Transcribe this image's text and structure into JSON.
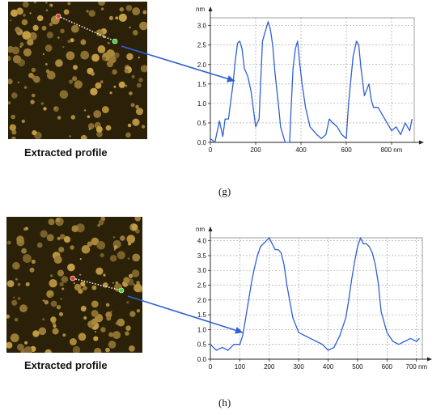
{
  "figures": [
    {
      "id": "g",
      "caption": "Extracted profile",
      "sublabel": "(g)",
      "colors": {
        "bg": "#2a2108",
        "blob": "#c29a40",
        "trace": "#2f5fd6",
        "line_dots": "#ffffff",
        "start_marker": "#e53935",
        "end_marker": "#3fd23f"
      }
    },
    {
      "id": "h",
      "caption": "Extracted profile",
      "sublabel": "(h)",
      "colors": {
        "bg": "#2a2108",
        "blob": "#c29a40",
        "trace": "#2f5fd6",
        "line_dots": "#ffffff",
        "start_marker": "#e53935",
        "end_marker": "#3fd23f"
      }
    }
  ],
  "chart_data": [
    {
      "type": "line",
      "title": "",
      "xlabel": "",
      "ylabel": "",
      "x_unit": "nm",
      "y_unit": "nm",
      "xlim": [
        0,
        900
      ],
      "ylim": [
        0,
        3.2
      ],
      "xticks": [
        0,
        200,
        400,
        600,
        800
      ],
      "xtick_labels": [
        "0",
        "200",
        "400",
        "600",
        "800 nm"
      ],
      "yticks": [
        0,
        0.5,
        1.0,
        1.5,
        2.0,
        2.5,
        3.0
      ],
      "ytick_labels": [
        "0.0",
        "0.5",
        "1.0",
        "1.5",
        "2.0",
        "2.5",
        "3.0"
      ],
      "grid": true,
      "series": [
        {
          "x": [
            0,
            20,
            40,
            55,
            65,
            80,
            100,
            110,
            120,
            130,
            140,
            150,
            165,
            180,
            200,
            215,
            230,
            240,
            255,
            265,
            275,
            285,
            300,
            310,
            330,
            350,
            355,
            365,
            375,
            385,
            395,
            405,
            420,
            440,
            470,
            490,
            510,
            525,
            540,
            560,
            580,
            600,
            610,
            620,
            630,
            645,
            655,
            665,
            680,
            700,
            710,
            720,
            740,
            760,
            780,
            800,
            820,
            840,
            860,
            880,
            890
          ],
          "y": [
            0.1,
            0.0,
            0.55,
            0.15,
            0.6,
            0.6,
            1.5,
            2.1,
            2.55,
            2.6,
            2.4,
            1.9,
            1.7,
            1.3,
            0.4,
            0.6,
            2.6,
            2.8,
            3.1,
            2.9,
            2.5,
            1.8,
            1.0,
            0.4,
            0.0,
            0.0,
            0.7,
            1.9,
            2.4,
            2.6,
            2.0,
            1.5,
            0.9,
            0.4,
            0.2,
            0.1,
            0.2,
            0.6,
            0.5,
            0.4,
            0.2,
            0.1,
            1.0,
            1.6,
            2.2,
            2.6,
            2.5,
            1.9,
            1.2,
            1.5,
            1.1,
            0.9,
            0.9,
            0.7,
            0.5,
            0.3,
            0.4,
            0.2,
            0.5,
            0.3,
            0.6
          ]
        }
      ]
    },
    {
      "type": "line",
      "title": "",
      "xlabel": "",
      "ylabel": "",
      "x_unit": "nm",
      "y_unit": "nm",
      "xlim": [
        0,
        720
      ],
      "ylim": [
        0,
        4.1
      ],
      "xticks": [
        0,
        100,
        200,
        300,
        400,
        500,
        600,
        700
      ],
      "xtick_labels": [
        "0",
        "100",
        "200",
        "300",
        "400",
        "500",
        "600",
        "700 nm"
      ],
      "yticks": [
        0,
        0.5,
        1.0,
        1.5,
        2.0,
        2.5,
        3.0,
        3.5,
        4.0
      ],
      "ytick_labels": [
        "0.0",
        "0.5",
        "1.0",
        "1.5",
        "2.0",
        "2.5",
        "3.0",
        "3.5",
        "4.0"
      ],
      "grid": true,
      "series": [
        {
          "x": [
            0,
            20,
            40,
            60,
            80,
            100,
            110,
            120,
            130,
            140,
            150,
            160,
            170,
            180,
            190,
            200,
            210,
            220,
            230,
            240,
            250,
            260,
            280,
            300,
            320,
            340,
            360,
            380,
            400,
            420,
            440,
            460,
            470,
            480,
            490,
            500,
            510,
            520,
            530,
            540,
            550,
            560,
            570,
            580,
            600,
            620,
            640,
            660,
            680,
            700,
            710
          ],
          "y": [
            0.5,
            0.3,
            0.4,
            0.3,
            0.5,
            0.5,
            0.8,
            1.4,
            2.0,
            2.6,
            3.1,
            3.5,
            3.8,
            3.9,
            4.0,
            4.1,
            3.9,
            3.7,
            3.7,
            3.6,
            3.2,
            2.5,
            1.4,
            0.9,
            0.8,
            0.7,
            0.6,
            0.5,
            0.3,
            0.4,
            0.8,
            1.4,
            2.0,
            2.7,
            3.3,
            3.8,
            4.1,
            3.9,
            3.9,
            3.8,
            3.6,
            3.2,
            2.6,
            1.6,
            0.9,
            0.6,
            0.5,
            0.6,
            0.7,
            0.6,
            0.7
          ]
        }
      ]
    }
  ]
}
